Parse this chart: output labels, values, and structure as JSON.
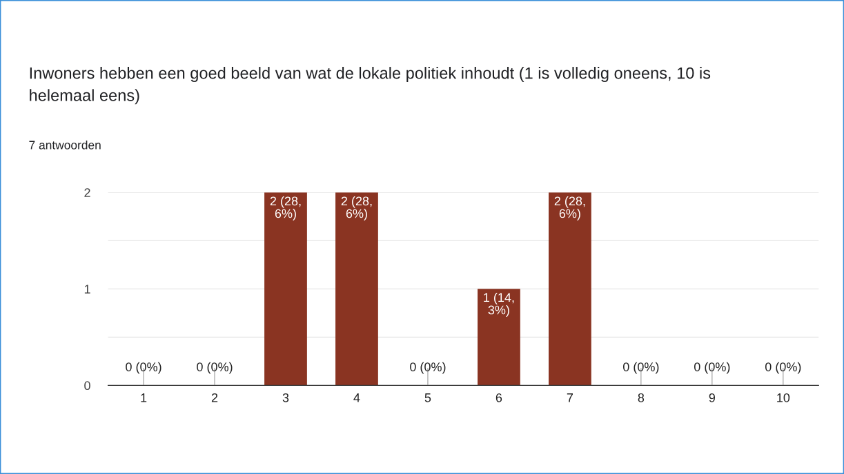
{
  "chart_data": {
    "type": "bar",
    "title": "Inwoners hebben een goed beeld van wat de lokale politiek inhoudt (1 is volledig oneens, 10 is helemaal eens)",
    "subtitle": "7 antwoorden",
    "categories": [
      "1",
      "2",
      "3",
      "4",
      "5",
      "6",
      "7",
      "8",
      "9",
      "10"
    ],
    "values": [
      0,
      0,
      2,
      2,
      0,
      1,
      2,
      0,
      0,
      0
    ],
    "value_labels": [
      "0 (0%)",
      "0 (0%)",
      "2 (28,6%)",
      "2 (28,6%)",
      "0 (0%)",
      "1 (14,3%)",
      "2 (28,6%)",
      "0 (0%)",
      "0 (0%)",
      "0 (0%)"
    ],
    "color": "#8a3422",
    "ylim": [
      0,
      2
    ],
    "yticks": [
      0,
      {
        "value": 0.5,
        "label": null
      },
      1,
      {
        "value": 1.5,
        "label": null
      },
      2
    ],
    "grid": "y"
  }
}
